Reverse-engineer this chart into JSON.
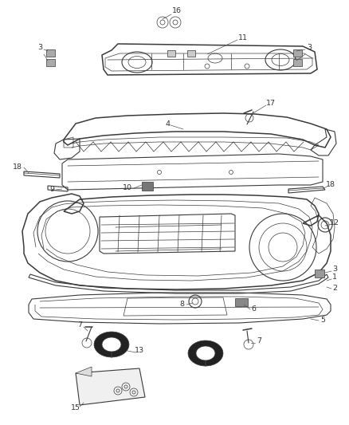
{
  "bg_color": "#ffffff",
  "line_color": "#3a3a3a",
  "label_color": "#333333",
  "fig_width": 4.38,
  "fig_height": 5.33,
  "dpi": 100,
  "lw_thin": 0.5,
  "lw_med": 0.8,
  "lw_thick": 1.1
}
